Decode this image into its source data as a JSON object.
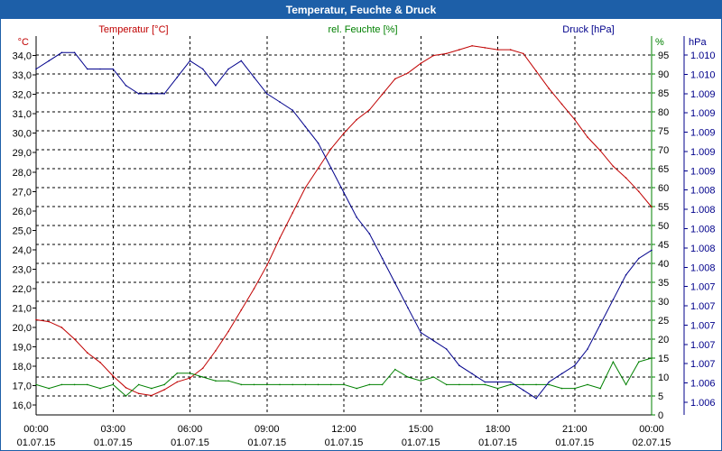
{
  "window": {
    "title": "Temperatur, Feuchte & Druck"
  },
  "chart_data": {
    "type": "line",
    "title": "Temperatur, Feuchte & Druck",
    "colors": {
      "temperature": "#c00000",
      "humidity": "#008000",
      "pressure": "#00008b",
      "frame": "#1d5fa8"
    },
    "axes": {
      "temperature": {
        "unit": "°C",
        "label": "Temperatur [°C]",
        "ylim": [
          15.5,
          35.0
        ],
        "ticks": [
          "16,0",
          "17,0",
          "18,0",
          "19,0",
          "20,0",
          "21,0",
          "22,0",
          "23,0",
          "24,0",
          "25,0",
          "26,0",
          "27,0",
          "28,0",
          "29,0",
          "30,0",
          "31,0",
          "32,0",
          "33,0",
          "34,0"
        ]
      },
      "humidity": {
        "unit": "%",
        "label": "rel. Feuchte [%]",
        "ylim": [
          0,
          100
        ],
        "ticks": [
          "0",
          "5",
          "10",
          "15",
          "20",
          "25",
          "30",
          "35",
          "40",
          "45",
          "50",
          "55",
          "60",
          "65",
          "70",
          "75",
          "80",
          "85",
          "90",
          "95"
        ]
      },
      "pressure": {
        "unit": "hPa",
        "label": "Druck [hPa]",
        "ylim": [
          1005.6,
          1010.2
        ],
        "ticks": [
          "1.006",
          "1.006",
          "1.007",
          "1.007",
          "1.007",
          "1.007",
          "1.007",
          "1.008",
          "1.008",
          "1.008",
          "1.008",
          "1.008",
          "1.009",
          "1.009",
          "1.009",
          "1.009",
          "1.009",
          "1.010",
          "1.010"
        ]
      }
    },
    "x_ticks": [
      {
        "time": "00:00",
        "date": "01.07.15"
      },
      {
        "time": "03:00",
        "date": "01.07.15"
      },
      {
        "time": "06:00",
        "date": "01.07.15"
      },
      {
        "time": "09:00",
        "date": "01.07.15"
      },
      {
        "time": "12:00",
        "date": "01.07.15"
      },
      {
        "time": "15:00",
        "date": "01.07.15"
      },
      {
        "time": "18:00",
        "date": "01.07.15"
      },
      {
        "time": "21:00",
        "date": "01.07.15"
      },
      {
        "time": "00:00",
        "date": "02.07.15"
      }
    ],
    "xlim_hours": [
      0,
      24
    ],
    "series": [
      {
        "name": "Temperatur",
        "axis": "temperature",
        "x": [
          0,
          0.5,
          1,
          1.5,
          2,
          2.5,
          3,
          3.5,
          4,
          4.5,
          5,
          5.5,
          6,
          6.5,
          7,
          7.5,
          8,
          8.5,
          9,
          9.5,
          10,
          10.5,
          11,
          11.5,
          12,
          12.5,
          13,
          13.5,
          14,
          14.5,
          15,
          15.5,
          16,
          16.5,
          17,
          17.5,
          18,
          18.5,
          19,
          19.5,
          20,
          20.5,
          21,
          21.5,
          22,
          22.5,
          23,
          23.5,
          24
        ],
        "values": [
          20.4,
          20.3,
          20.0,
          19.4,
          18.7,
          18.2,
          17.5,
          16.9,
          16.6,
          16.5,
          16.8,
          17.2,
          17.4,
          17.9,
          18.8,
          19.8,
          20.9,
          22.0,
          23.2,
          24.6,
          25.9,
          27.2,
          28.2,
          29.2,
          30.0,
          30.7,
          31.2,
          32.0,
          32.8,
          33.1,
          33.6,
          34.0,
          34.1,
          34.3,
          34.5,
          34.4,
          34.3,
          34.3,
          34.1,
          33.2,
          32.3,
          31.5,
          30.7,
          29.8,
          29.1,
          28.3,
          27.7,
          27.0,
          26.2
        ]
      },
      {
        "name": "rel. Feuchte",
        "axis": "humidity",
        "x": [
          0,
          0.5,
          1,
          1.5,
          2,
          2.5,
          3,
          3.5,
          4,
          4.5,
          5,
          5.5,
          6,
          6.5,
          7,
          7.5,
          8,
          8.5,
          9,
          9.5,
          10,
          10.5,
          11,
          11.5,
          12,
          12.5,
          13,
          13.5,
          14,
          14.5,
          15,
          15.5,
          16,
          16.5,
          17,
          17.5,
          18,
          18.5,
          19,
          19.5,
          20,
          20.5,
          21,
          21.5,
          22,
          22.5,
          23,
          23.5,
          24
        ],
        "values": [
          8,
          7,
          8,
          8,
          8,
          7,
          8,
          5,
          8,
          7,
          8,
          11,
          11,
          10,
          9,
          9,
          8,
          8,
          8,
          8,
          8,
          8,
          8,
          8,
          8,
          7,
          8,
          8,
          12,
          10,
          9,
          10,
          8,
          8,
          8,
          8,
          7,
          8,
          8,
          8,
          8,
          7,
          7,
          8,
          7,
          14,
          8,
          14,
          15
        ]
      },
      {
        "name": "Druck",
        "axis": "pressure",
        "x": [
          0,
          0.5,
          1,
          1.5,
          2,
          2.5,
          3,
          3.5,
          4,
          4.5,
          5,
          5.5,
          6,
          6.5,
          7,
          7.5,
          8,
          8.5,
          9,
          9.5,
          10,
          10.5,
          11,
          11.5,
          12,
          12.5,
          13,
          13.5,
          14,
          14.5,
          15,
          15.5,
          16,
          16.5,
          17,
          17.5,
          18,
          18.5,
          19,
          19.5,
          20,
          20.5,
          21,
          21.5,
          22,
          22.5,
          23,
          23.5,
          24
        ],
        "values": [
          1009.8,
          1009.9,
          1010.0,
          1010.0,
          1009.8,
          1009.8,
          1009.8,
          1009.6,
          1009.5,
          1009.5,
          1009.5,
          1009.7,
          1009.9,
          1009.8,
          1009.6,
          1009.8,
          1009.9,
          1009.7,
          1009.5,
          1009.4,
          1009.3,
          1009.1,
          1008.9,
          1008.6,
          1008.3,
          1008.0,
          1007.8,
          1007.5,
          1007.2,
          1006.9,
          1006.6,
          1006.5,
          1006.4,
          1006.2,
          1006.1,
          1006.0,
          1006.0,
          1006.0,
          1005.9,
          1005.8,
          1006.0,
          1006.1,
          1006.2,
          1006.4,
          1006.7,
          1007.0,
          1007.3,
          1007.5,
          1007.6
        ]
      }
    ]
  }
}
